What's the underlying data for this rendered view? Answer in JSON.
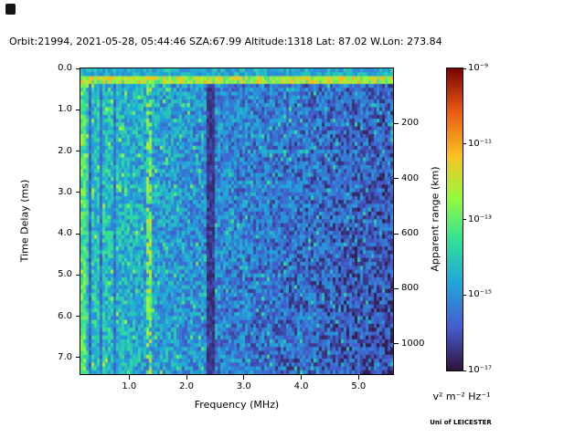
{
  "title": "Orbit:21994, 2021-05-28, 05:44:46 SZA:67.99 Altitude:1318 Lat: 87.02 W.Lon: 273.84",
  "credit": "Uni of LEICESTER",
  "axes": {
    "x": {
      "label": "Frequency (MHz)",
      "tick_labels": [
        "1.0",
        "2.0",
        "3.0",
        "4.0",
        "5.0"
      ]
    },
    "y_left": {
      "label": "Time Delay (ms)",
      "tick_labels": [
        "0.0",
        "1.0",
        "2.0",
        "3.0",
        "4.0",
        "5.0",
        "6.0",
        "7.0"
      ]
    },
    "y_right": {
      "label": "Apparent range (km)",
      "tick_labels": [
        "200",
        "400",
        "600",
        "800",
        "1000"
      ]
    }
  },
  "colorbar": {
    "unit_label": "v² m⁻² Hz⁻¹",
    "tick_labels": [
      "10⁻⁹",
      "10⁻¹¹",
      "10⁻¹³",
      "10⁻¹⁵",
      "10⁻¹⁷"
    ],
    "scale": "log",
    "colormap": "turbo"
  },
  "chart_data": {
    "type": "heatmap",
    "title": "Orbit:21994, 2021-05-28, 05:44:46 SZA:67.99 Altitude:1318 Lat: 87.02 W.Lon: 273.84",
    "xlabel": "Frequency (MHz)",
    "ylabel_left": "Time Delay (ms)",
    "ylabel_right": "Apparent range (km)",
    "x_range": [
      0.15,
      5.6
    ],
    "y_range": [
      0.0,
      7.4
    ],
    "x_ticks": [
      1.0,
      2.0,
      3.0,
      4.0,
      5.0
    ],
    "y_ticks": [
      0.0,
      1.0,
      2.0,
      3.0,
      4.0,
      5.0,
      6.0,
      7.0
    ],
    "right_axis_ticks_km": [
      200,
      400,
      600,
      800,
      1000
    ],
    "value_scale": "log10",
    "value_range": [
      "1e-17",
      "1e-9"
    ],
    "value_unit": "v² m⁻² Hz⁻¹",
    "colormap": "turbo",
    "features": [
      "diffuse blue noise background with intensity decreasing toward higher frequency",
      "bright cyan-green horizontal band near 0.2 ms time delay across all frequencies",
      "bright dashed vertical line near 1.35 MHz",
      "dark vertical absorption bands near 0.33, 0.52, 0.75 and 2.4 MHz",
      "brighter emission at lowest frequencies below ~0.25 MHz",
      "far right (above ~4 MHz) dominated by dark near-background cells"
    ],
    "render": {
      "seed": 20210528,
      "cols": 114,
      "rows": 79,
      "km_per_ms": 150,
      "base_offset": 0.06,
      "base_amp": 0.3,
      "base_falloff": 1.3,
      "noise": 0.24,
      "speckle_p": 0.07,
      "speckle_boost": 0.14,
      "top_band": {
        "row": 2,
        "v": 0.45,
        "jitter": 0.28
      },
      "left_edge": {
        "f": 0.24,
        "v": 0.33
      },
      "bright_line": {
        "f": 1.34,
        "w": 0.03,
        "p": 0.65,
        "v": 0.45
      },
      "dark_lines": [
        {
          "f": 0.33,
          "w": 0.035,
          "gain": 0.45
        },
        {
          "f": 0.52,
          "w": 0.03,
          "gain": 0.55
        },
        {
          "f": 0.75,
          "w": 0.025,
          "gain": 0.6
        },
        {
          "f": 2.4,
          "w": 0.07,
          "gain": 0.33
        }
      ]
    }
  }
}
